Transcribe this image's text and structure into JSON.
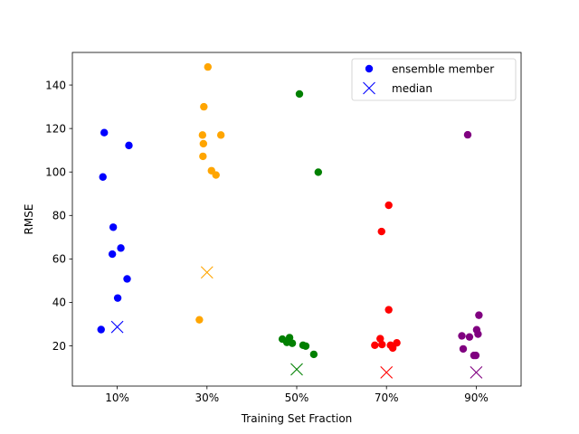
{
  "chart_data": {
    "type": "scatter",
    "xlabel": "Training Set Fraction",
    "ylabel": "RMSE",
    "xlim": [
      0.0,
      1.0
    ],
    "ylim": [
      1.5,
      155
    ],
    "x_ticks": [
      {
        "value": 0.1,
        "label": "10%"
      },
      {
        "value": 0.3,
        "label": "30%"
      },
      {
        "value": 0.5,
        "label": "50%"
      },
      {
        "value": 0.7,
        "label": "70%"
      },
      {
        "value": 0.9,
        "label": "90%"
      }
    ],
    "y_ticks": [
      20,
      40,
      60,
      80,
      100,
      120,
      140
    ],
    "grid": false,
    "legend": {
      "placement": "top-right",
      "entries": [
        {
          "label": "ensemble member",
          "marker": "circle",
          "color": "#0000ff"
        },
        {
          "label": "median",
          "marker": "x",
          "color": "#0000ff"
        }
      ]
    },
    "series": [
      {
        "color": "#0000ff",
        "fraction": "10%",
        "members": [
          [
            0.064,
            27.5
          ],
          [
            0.068,
            97.7
          ],
          [
            0.071,
            118.1
          ],
          [
            0.089,
            62.2
          ],
          [
            0.091,
            74.6
          ],
          [
            0.101,
            42.0
          ],
          [
            0.108,
            65.0
          ],
          [
            0.122,
            50.8
          ],
          [
            0.126,
            112.2
          ]
        ],
        "median": [
          0.1,
          28.7
        ]
      },
      {
        "color": "#ffa500",
        "fraction": "30%",
        "members": [
          [
            0.283,
            32.0
          ],
          [
            0.29,
            117.0
          ],
          [
            0.291,
            107.2
          ],
          [
            0.292,
            113.0
          ],
          [
            0.293,
            130.0
          ],
          [
            0.302,
            148.3
          ],
          [
            0.31,
            100.6
          ],
          [
            0.32,
            98.6
          ],
          [
            0.331,
            117.0
          ]
        ],
        "median": [
          0.3,
          53.8
        ]
      },
      {
        "color": "#008000",
        "fraction": "50%",
        "members": [
          [
            0.468,
            23.1
          ],
          [
            0.478,
            21.6
          ],
          [
            0.484,
            23.8
          ],
          [
            0.49,
            21.2
          ],
          [
            0.506,
            135.9
          ],
          [
            0.514,
            20.3
          ],
          [
            0.52,
            19.9
          ],
          [
            0.538,
            16.1
          ],
          [
            0.548,
            99.9
          ]
        ],
        "median": [
          0.5,
          9.2
        ]
      },
      {
        "color": "#ff0000",
        "fraction": "70%",
        "members": [
          [
            0.674,
            20.3
          ],
          [
            0.686,
            23.3
          ],
          [
            0.689,
            72.6
          ],
          [
            0.69,
            20.6
          ],
          [
            0.705,
            36.6
          ],
          [
            0.705,
            84.7
          ],
          [
            0.709,
            20.3
          ],
          [
            0.714,
            19.0
          ],
          [
            0.723,
            21.4
          ]
        ],
        "median": [
          0.7,
          7.8
        ]
      },
      {
        "color": "#800080",
        "fraction": "90%",
        "members": [
          [
            0.868,
            24.6
          ],
          [
            0.871,
            18.6
          ],
          [
            0.881,
            117.1
          ],
          [
            0.885,
            24.1
          ],
          [
            0.895,
            15.6
          ],
          [
            0.899,
            15.6
          ],
          [
            0.901,
            27.4
          ],
          [
            0.904,
            25.4
          ],
          [
            0.906,
            34.1
          ]
        ],
        "median": [
          0.9,
          7.8
        ]
      }
    ]
  }
}
